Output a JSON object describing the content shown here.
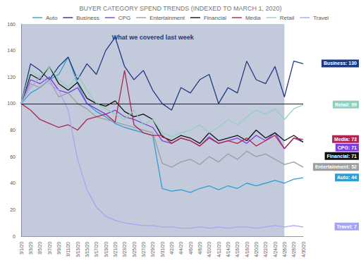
{
  "chart_data": {
    "type": "line",
    "title": "BUYER CATEGORY SPEND TRENDS (INDEXED TO MARCH 1, 2020)",
    "categories": [
      "3/1/20",
      "3/3/20",
      "3/5/20",
      "3/7/20",
      "3/9/20",
      "3/11/20",
      "3/13/20",
      "3/15/20",
      "3/17/20",
      "3/19/20",
      "3/21/20",
      "3/23/20",
      "3/25/20",
      "3/27/20",
      "3/29/20",
      "3/31/20",
      "4/2/20",
      "4/4/20",
      "4/6/20",
      "4/8/20",
      "4/10/20",
      "4/12/20",
      "4/14/20",
      "4/16/20",
      "4/18/20",
      "4/20/20",
      "4/22/20",
      "4/24/20",
      "4/26/20",
      "4/28/20",
      "4/30/20"
    ],
    "series": [
      {
        "name": "Auto",
        "color": "#2e9fd4",
        "end_label": "Auto: 44",
        "values": [
          100,
          108,
          112,
          118,
          122,
          135,
          115,
          100,
          94,
          90,
          85,
          82,
          80,
          78,
          76,
          36,
          34,
          35,
          33,
          36,
          38,
          35,
          38,
          36,
          40,
          38,
          40,
          42,
          40,
          43,
          44
        ]
      },
      {
        "name": "Business",
        "color": "#1f3a80",
        "end_label": "Business: 130",
        "values": [
          100,
          130,
          125,
          118,
          128,
          135,
          118,
          130,
          122,
          140,
          150,
          128,
          118,
          125,
          110,
          100,
          95,
          112,
          108,
          118,
          122,
          100,
          112,
          108,
          132,
          118,
          115,
          128,
          105,
          132,
          130
        ]
      },
      {
        "name": "CPG",
        "color": "#7b3fe0",
        "end_label": "CPG: 71",
        "values": [
          100,
          118,
          115,
          120,
          110,
          108,
          112,
          100,
          96,
          92,
          95,
          90,
          88,
          85,
          82,
          72,
          70,
          74,
          72,
          68,
          75,
          70,
          72,
          74,
          70,
          76,
          72,
          78,
          66,
          74,
          71
        ]
      },
      {
        "name": "Entertainment",
        "color": "#9e9e9e",
        "end_label": "Entertainment: 52",
        "values": [
          100,
          115,
          112,
          118,
          105,
          108,
          100,
          96,
          90,
          88,
          86,
          84,
          82,
          80,
          78,
          55,
          52,
          56,
          58,
          54,
          60,
          56,
          62,
          58,
          64,
          60,
          62,
          58,
          54,
          56,
          52
        ]
      },
      {
        "name": "Financial",
        "color": "#111111",
        "end_label": "Financial: 71",
        "values": [
          100,
          122,
          118,
          128,
          115,
          110,
          116,
          104,
          100,
          98,
          102,
          94,
          90,
          92,
          88,
          75,
          72,
          76,
          74,
          70,
          78,
          72,
          74,
          76,
          72,
          80,
          74,
          78,
          72,
          76,
          71
        ]
      },
      {
        "name": "Media",
        "color": "#b0254f",
        "end_label": "Media: 73",
        "values": [
          100,
          95,
          88,
          85,
          82,
          84,
          80,
          88,
          90,
          92,
          86,
          125,
          84,
          78,
          76,
          76,
          70,
          74,
          72,
          68,
          74,
          70,
          72,
          70,
          74,
          68,
          72,
          76,
          66,
          74,
          73
        ]
      },
      {
        "name": "Retail",
        "color": "#8fd1b8",
        "end_label": "Retail: 99",
        "values": [
          100,
          125,
          120,
          128,
          118,
          112,
          122,
          110,
          100,
          96,
          92,
          88,
          95,
          84,
          88,
          78,
          75,
          78,
          80,
          84,
          78,
          82,
          88,
          84,
          90,
          95,
          92,
          96,
          88,
          96,
          99
        ]
      },
      {
        "name": "Travel",
        "color": "#a8a5f0",
        "end_label": "Travel: 7",
        "values": [
          100,
          112,
          120,
          115,
          110,
          95,
          58,
          35,
          22,
          15,
          12,
          10,
          9,
          8,
          8,
          7,
          7,
          6,
          6,
          7,
          6,
          7,
          6,
          7,
          7,
          6,
          7,
          8,
          7,
          8,
          7
        ]
      }
    ],
    "ylim": [
      0,
      160
    ],
    "yticks": [
      0,
      20,
      40,
      60,
      80,
      100,
      120,
      140,
      160
    ],
    "grid": false,
    "legend": "top",
    "annotations": [
      {
        "text": "What we covered last week",
        "x_start": "3/1/20",
        "x_end": "4/26/20"
      },
      {
        "y": 100
      }
    ]
  }
}
